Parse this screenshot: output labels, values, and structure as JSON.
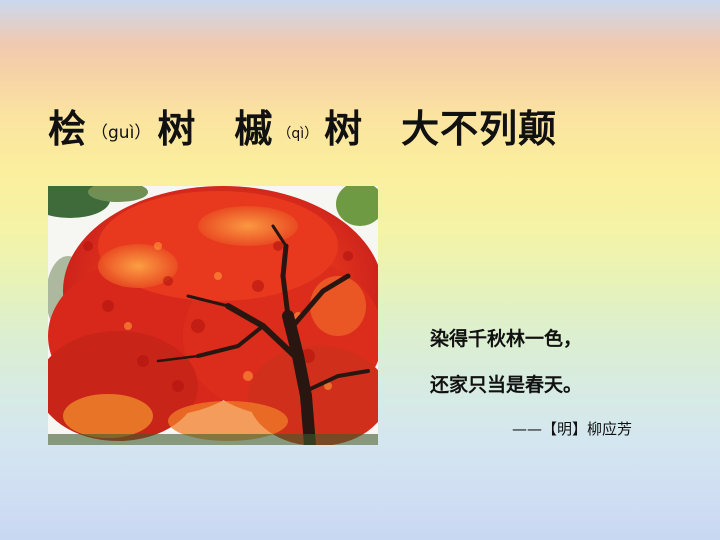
{
  "title": {
    "char1": "桧",
    "pinyin1": "（guì）",
    "char2": "树",
    "char3": "槭",
    "pinyin2": "（qì）",
    "char4": "树",
    "phrase": "大不列颠"
  },
  "poem": {
    "line1": "染得千秋林一色，",
    "line2": "还家只当是春天。",
    "attribution": "——【明】柳应芳"
  },
  "colors": {
    "leaf_red": "#e0261b",
    "leaf_orange": "#f26b21",
    "trunk": "#2a1610"
  }
}
